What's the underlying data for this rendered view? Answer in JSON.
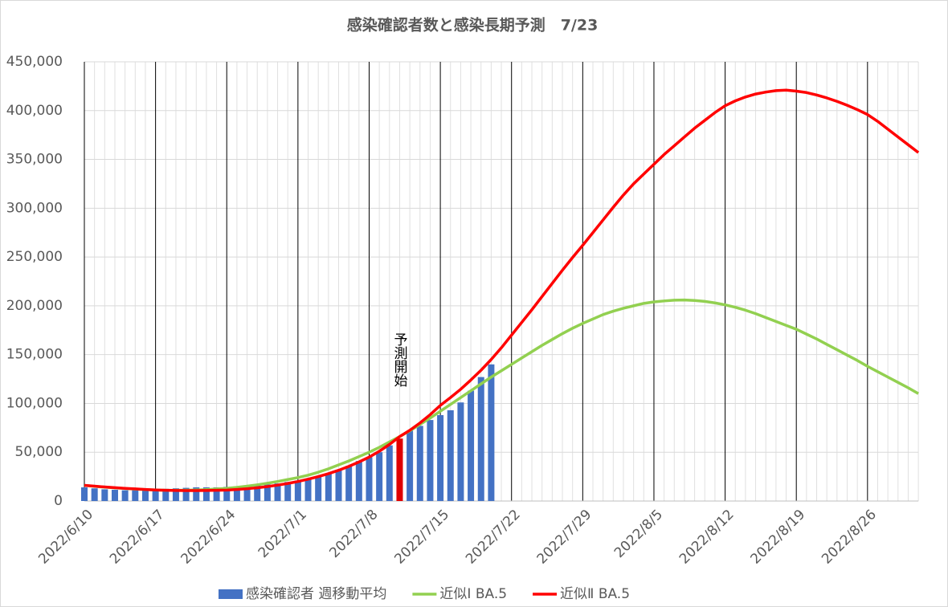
{
  "chart_data": {
    "type": "bar_line",
    "title": "感染確認者数と感染長期予測　7/23",
    "annotation": "予測開始",
    "categories": [
      "2022/6/10",
      null,
      null,
      null,
      null,
      null,
      null,
      "2022/6/17",
      null,
      null,
      null,
      null,
      null,
      null,
      "2022/6/24",
      null,
      null,
      null,
      null,
      null,
      null,
      "2022/7/1",
      null,
      null,
      null,
      null,
      null,
      null,
      "2022/7/8",
      null,
      null,
      null,
      null,
      null,
      null,
      "2022/7/15",
      null,
      null,
      null,
      null,
      null,
      null,
      "2022/7/22",
      null,
      null,
      null,
      null,
      null,
      null,
      "2022/7/29",
      null,
      null,
      null,
      null,
      null,
      null,
      "2022/8/5",
      null,
      null,
      null,
      null,
      null,
      null,
      "2022/8/12",
      null,
      null,
      null,
      null,
      null,
      null,
      "2022/8/19",
      null,
      null,
      null,
      null,
      null,
      null,
      "2022/8/26",
      null,
      null,
      null,
      null,
      null
    ],
    "ylim": [
      0,
      450000
    ],
    "yticks": [
      0,
      {
        "value": 50000,
        "label": "50,000"
      },
      {
        "value": 100000,
        "label": "100,000"
      },
      {
        "value": 150000,
        "label": "150,000"
      },
      {
        "value": 200000,
        "label": "200,000"
      },
      {
        "value": 250000,
        "label": "250,000"
      },
      {
        "value": 300000,
        "label": "300,000"
      },
      {
        "value": 350000,
        "label": "350,000"
      },
      {
        "value": 400000,
        "label": "400,000"
      },
      {
        "value": 450000,
        "label": "450,000"
      }
    ],
    "grid": true,
    "legend": "bottom",
    "highlight_index": 31,
    "highlight_color": "#e00000",
    "series": [
      {
        "name": "感染確認者 週移動平均",
        "kind": "bar",
        "color": "#4472c4",
        "values": [
          14000,
          13000,
          12000,
          11500,
          11000,
          11000,
          11500,
          12000,
          12500,
          13000,
          13500,
          14000,
          14000,
          14000,
          14500,
          15000,
          16000,
          16500,
          17000,
          18000,
          19500,
          21000,
          23000,
          25500,
          28000,
          32000,
          36000,
          41000,
          45000,
          50000,
          57000,
          64000,
          72000,
          77000,
          83000,
          88000,
          93000,
          101000,
          113000,
          127000,
          140000,
          null,
          null,
          null,
          null,
          null,
          null,
          null,
          null,
          null,
          null,
          null,
          null,
          null,
          null,
          null,
          null,
          null,
          null,
          null,
          null,
          null,
          null,
          null,
          null,
          null,
          null,
          null,
          null,
          null,
          null,
          null,
          null,
          null,
          null,
          null,
          null,
          null,
          null,
          null,
          null,
          null,
          null
        ]
      },
      {
        "name": "近似Ⅰ BA.5",
        "kind": "line",
        "color": "#92d050",
        "values": [
          16000,
          15000,
          14200,
          13500,
          12800,
          12200,
          11700,
          11300,
          11000,
          11000,
          11100,
          11300,
          11700,
          12300,
          13000,
          14000,
          15200,
          16600,
          18200,
          20000,
          22000,
          24000,
          26500,
          29500,
          33000,
          37000,
          41000,
          45500,
          50000,
          55000,
          60500,
          66000,
          72000,
          78500,
          85000,
          92000,
          99000,
          106000,
          113000,
          120000,
          127000,
          133500,
          140000,
          146500,
          153000,
          159500,
          165500,
          171500,
          177000,
          182000,
          186500,
          191000,
          194500,
          197500,
          200000,
          202500,
          204000,
          205000,
          205800,
          206000,
          205500,
          204500,
          203000,
          201000,
          198500,
          195500,
          192000,
          188000,
          184000,
          180000,
          176000,
          171000,
          166000,
          160500,
          155000,
          149500,
          144000,
          138000,
          132500,
          127000,
          121500,
          116000,
          110000
        ]
      },
      {
        "name": "近似Ⅱ BA.5",
        "kind": "line",
        "color": "#ff0000",
        "values": [
          16000,
          15200,
          14400,
          13700,
          13000,
          12400,
          11800,
          11300,
          11000,
          10800,
          10700,
          10700,
          10800,
          11000,
          11200,
          11800,
          12600,
          13600,
          14800,
          16300,
          18000,
          20000,
          22400,
          25000,
          28000,
          31500,
          35500,
          40000,
          45000,
          51000,
          58000,
          66000,
          72500,
          80000,
          88500,
          98000,
          106000,
          114500,
          124000,
          134000,
          145000,
          157000,
          170000,
          183000,
          196000,
          209500,
          223000,
          236500,
          249500,
          262000,
          275000,
          288000,
          301000,
          313500,
          325000,
          335000,
          345000,
          355000,
          364000,
          373000,
          382000,
          390000,
          398000,
          405000,
          410000,
          414000,
          417000,
          419000,
          420500,
          421000,
          420000,
          418500,
          416000,
          413000,
          409500,
          405500,
          401000,
          396000,
          389000,
          381000,
          373000,
          365000,
          357000
        ]
      }
    ]
  }
}
